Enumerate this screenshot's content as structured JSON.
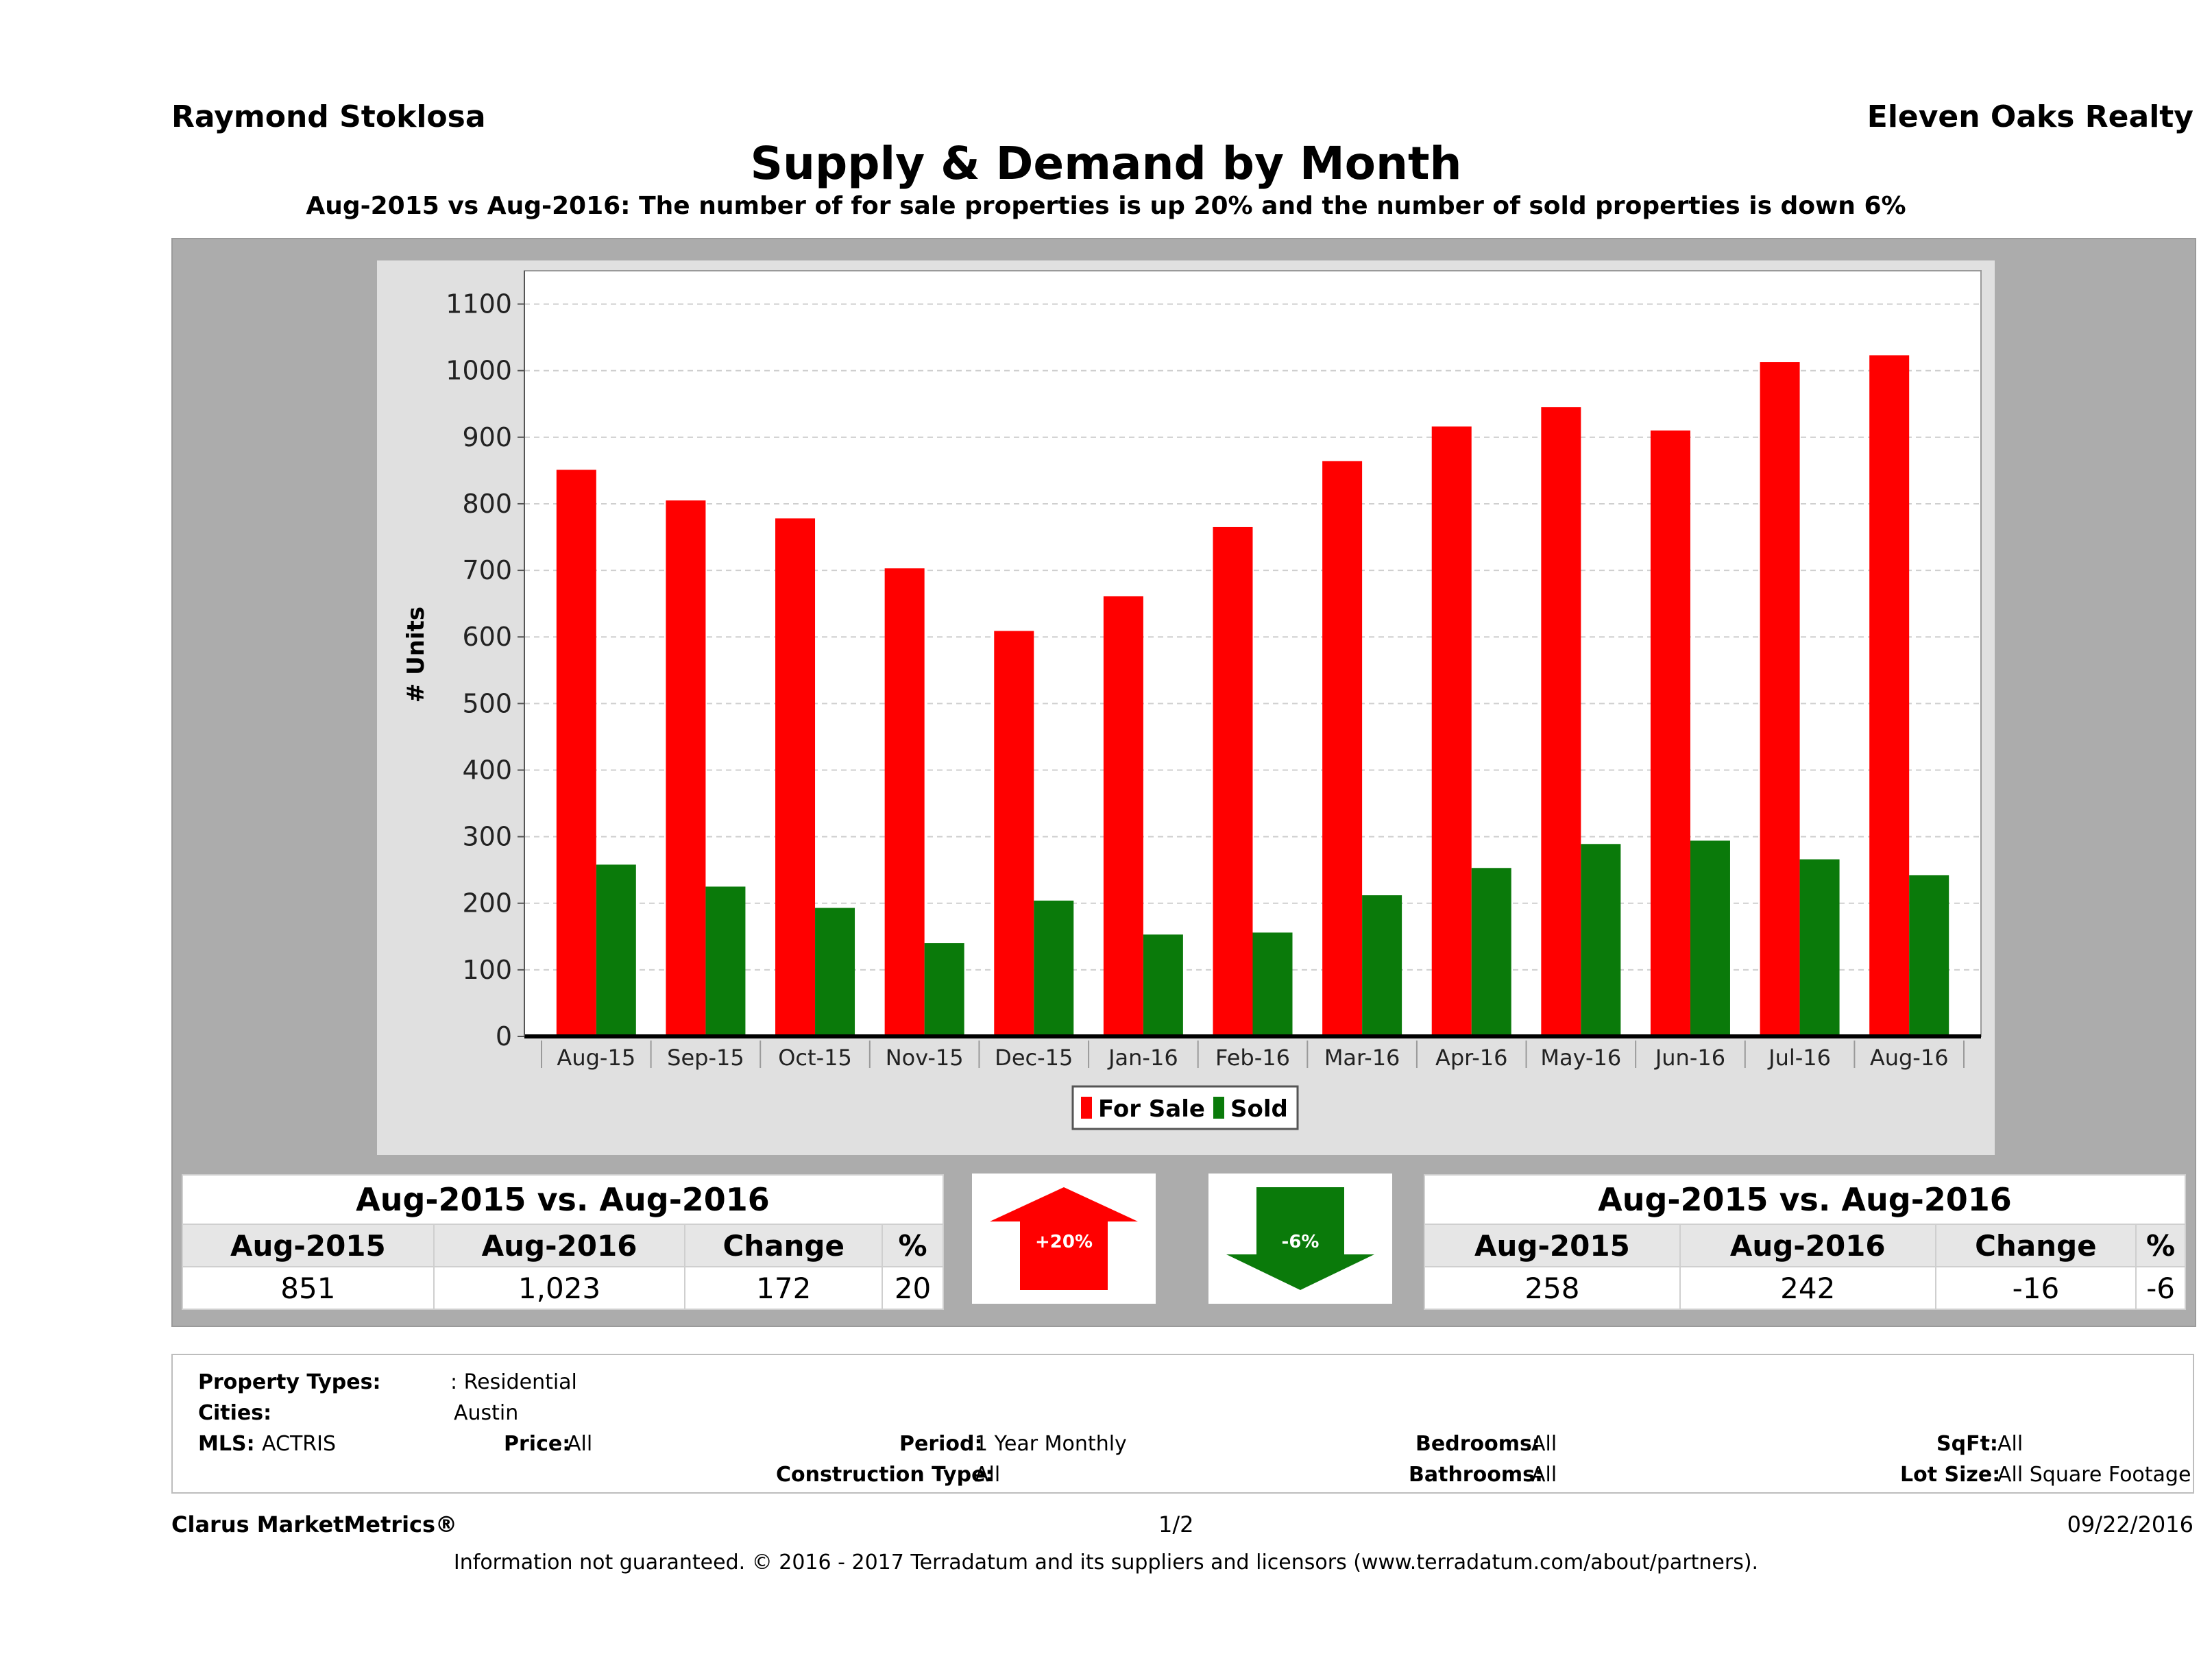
{
  "header": {
    "agent": "Raymond Stoklosa",
    "company": "Eleven Oaks Realty",
    "title": "Supply & Demand by Month",
    "subtitle": "Aug-2015 vs Aug-2016: The number of for sale properties is up 20% and the number of sold properties is down 6%"
  },
  "colors": {
    "for_sale": "#ff0000",
    "sold": "#0a7a0a",
    "panel": "#acacac",
    "plot_bg": "#ffffff"
  },
  "chart_data": {
    "type": "bar",
    "title": "Supply & Demand by Month",
    "ylabel": "# Units",
    "xlabel": "",
    "ylim": [
      0,
      1150
    ],
    "yticks": [
      0,
      100,
      200,
      300,
      400,
      500,
      600,
      700,
      800,
      900,
      1000,
      1100
    ],
    "grid": true,
    "legend_position": "bottom",
    "categories": [
      "Aug-15",
      "Sep-15",
      "Oct-15",
      "Nov-15",
      "Dec-15",
      "Jan-16",
      "Feb-16",
      "Mar-16",
      "Apr-16",
      "May-16",
      "Jun-16",
      "Jul-16",
      "Aug-16"
    ],
    "series": [
      {
        "name": "For Sale",
        "color": "#ff0000",
        "values": [
          851,
          805,
          778,
          703,
          609,
          661,
          765,
          864,
          916,
          945,
          910,
          1013,
          1023
        ]
      },
      {
        "name": "Sold",
        "color": "#0a7a0a",
        "values": [
          258,
          225,
          193,
          140,
          204,
          153,
          156,
          212,
          253,
          289,
          294,
          266,
          242
        ]
      }
    ]
  },
  "left_table": {
    "title": "Aug-2015 vs. Aug-2016",
    "headers": [
      "Aug-2015",
      "Aug-2016",
      "Change",
      "%"
    ],
    "values": [
      "851",
      "1,023",
      "172",
      "20"
    ]
  },
  "right_table": {
    "title": "Aug-2015 vs. Aug-2016",
    "headers": [
      "Aug-2015",
      "Aug-2016",
      "Change",
      "%"
    ],
    "values": [
      "258",
      "242",
      "-16",
      "-6"
    ]
  },
  "arrows": {
    "up_label": "+20%",
    "down_label": "-6%"
  },
  "filters": {
    "property_types_label": "Property Types:",
    "property_types_value": ": Residential",
    "cities_label": "Cities:",
    "cities_value": "Austin",
    "mls_label": "MLS:",
    "mls_value": "ACTRIS",
    "price_label": "Price:",
    "price_value": "All",
    "period_label": "Period:",
    "period_value": "1 Year Monthly",
    "construction_label": "Construction Type:",
    "construction_value": "All",
    "bedrooms_label": "Bedrooms:",
    "bedrooms_value": "All",
    "bathrooms_label": "Bathrooms:",
    "bathrooms_value": "All",
    "sqft_label": "SqFt:",
    "sqft_value": "All",
    "lotsize_label": "Lot Size:",
    "lotsize_value": "All Square Footage"
  },
  "footer": {
    "brand": "Clarus MarketMetrics®",
    "page": "1/2",
    "date": "09/22/2016",
    "disclaimer": "Information not guaranteed. © 2016 - 2017 Terradatum and its suppliers and licensors (www.terradatum.com/about/partners)."
  }
}
